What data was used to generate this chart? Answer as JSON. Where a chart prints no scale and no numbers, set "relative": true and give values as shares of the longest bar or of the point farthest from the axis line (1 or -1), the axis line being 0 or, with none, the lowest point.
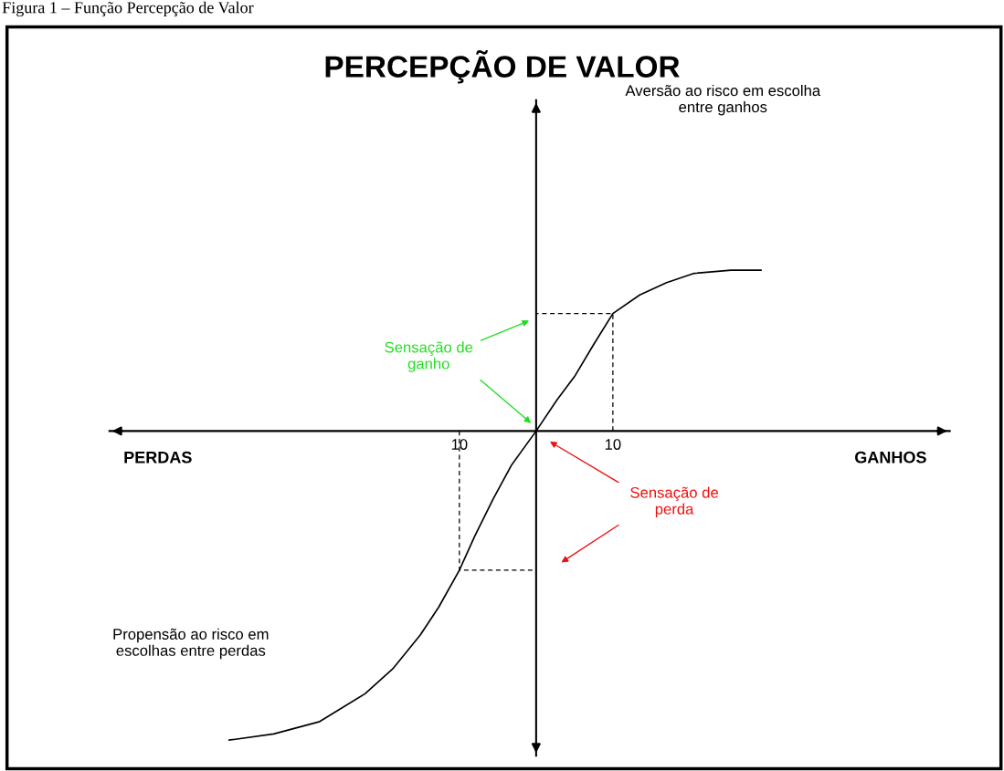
{
  "chart_data": {
    "type": "line",
    "relative": true,
    "title": "PERCEPÇÃO DE VALOR",
    "xlim": [
      -55.6,
      53.9
    ],
    "xticks": [
      {
        "value": -10,
        "label": "10"
      },
      {
        "value": 10,
        "label": "10"
      }
    ],
    "series": [
      {
        "color": "#000000",
        "line_style": "solid",
        "x": [
          -40,
          -34.2,
          -28.2,
          -22.3,
          -18.7,
          -15.1,
          -12.7,
          -10,
          -8,
          -5.6,
          -3.2,
          0,
          2.7,
          5.1,
          7.5,
          10,
          13.5,
          17,
          20.6,
          25.4,
          29.3
        ],
        "values": [
          -1,
          -0.98,
          -0.94,
          -0.85,
          -0.77,
          -0.66,
          -0.57,
          -0.45,
          -0.34,
          -0.22,
          -0.11,
          0,
          0.1,
          0.18,
          0.28,
          0.38,
          0.44,
          0.48,
          0.51,
          0.52,
          0.52
        ]
      },
      {
        "color": "#000000",
        "line_style": "dashed",
        "x": [
          10,
          10,
          0
        ],
        "values": [
          0,
          0.38,
          0.38
        ]
      },
      {
        "color": "#000000",
        "line_style": "dashed",
        "x": [
          -10,
          -10,
          0
        ],
        "values": [
          0,
          -0.45,
          -0.45
        ]
      }
    ],
    "annotations": [
      "Figura 1 – Função Percepção de Valor",
      "Aversão ao risco em escolha\nentre ganhos",
      "Propensão ao risco em\nescolhas entre perdas",
      "PERDAS",
      "GANHOS",
      "Sensação de\nganho",
      "Sensação de\nperda"
    ],
    "grid": false,
    "legend": false,
    "marker": "none"
  }
}
